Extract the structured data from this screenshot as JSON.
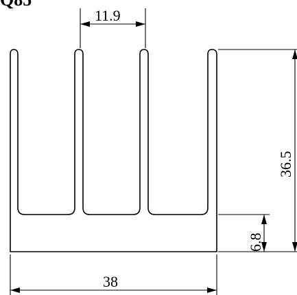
{
  "drawing": {
    "header_fragment": "Q85",
    "dimensions": {
      "fin_pitch": "11.9",
      "overall_height": "36.5",
      "base_thickness": "6.8",
      "overall_width": "38"
    }
  }
}
